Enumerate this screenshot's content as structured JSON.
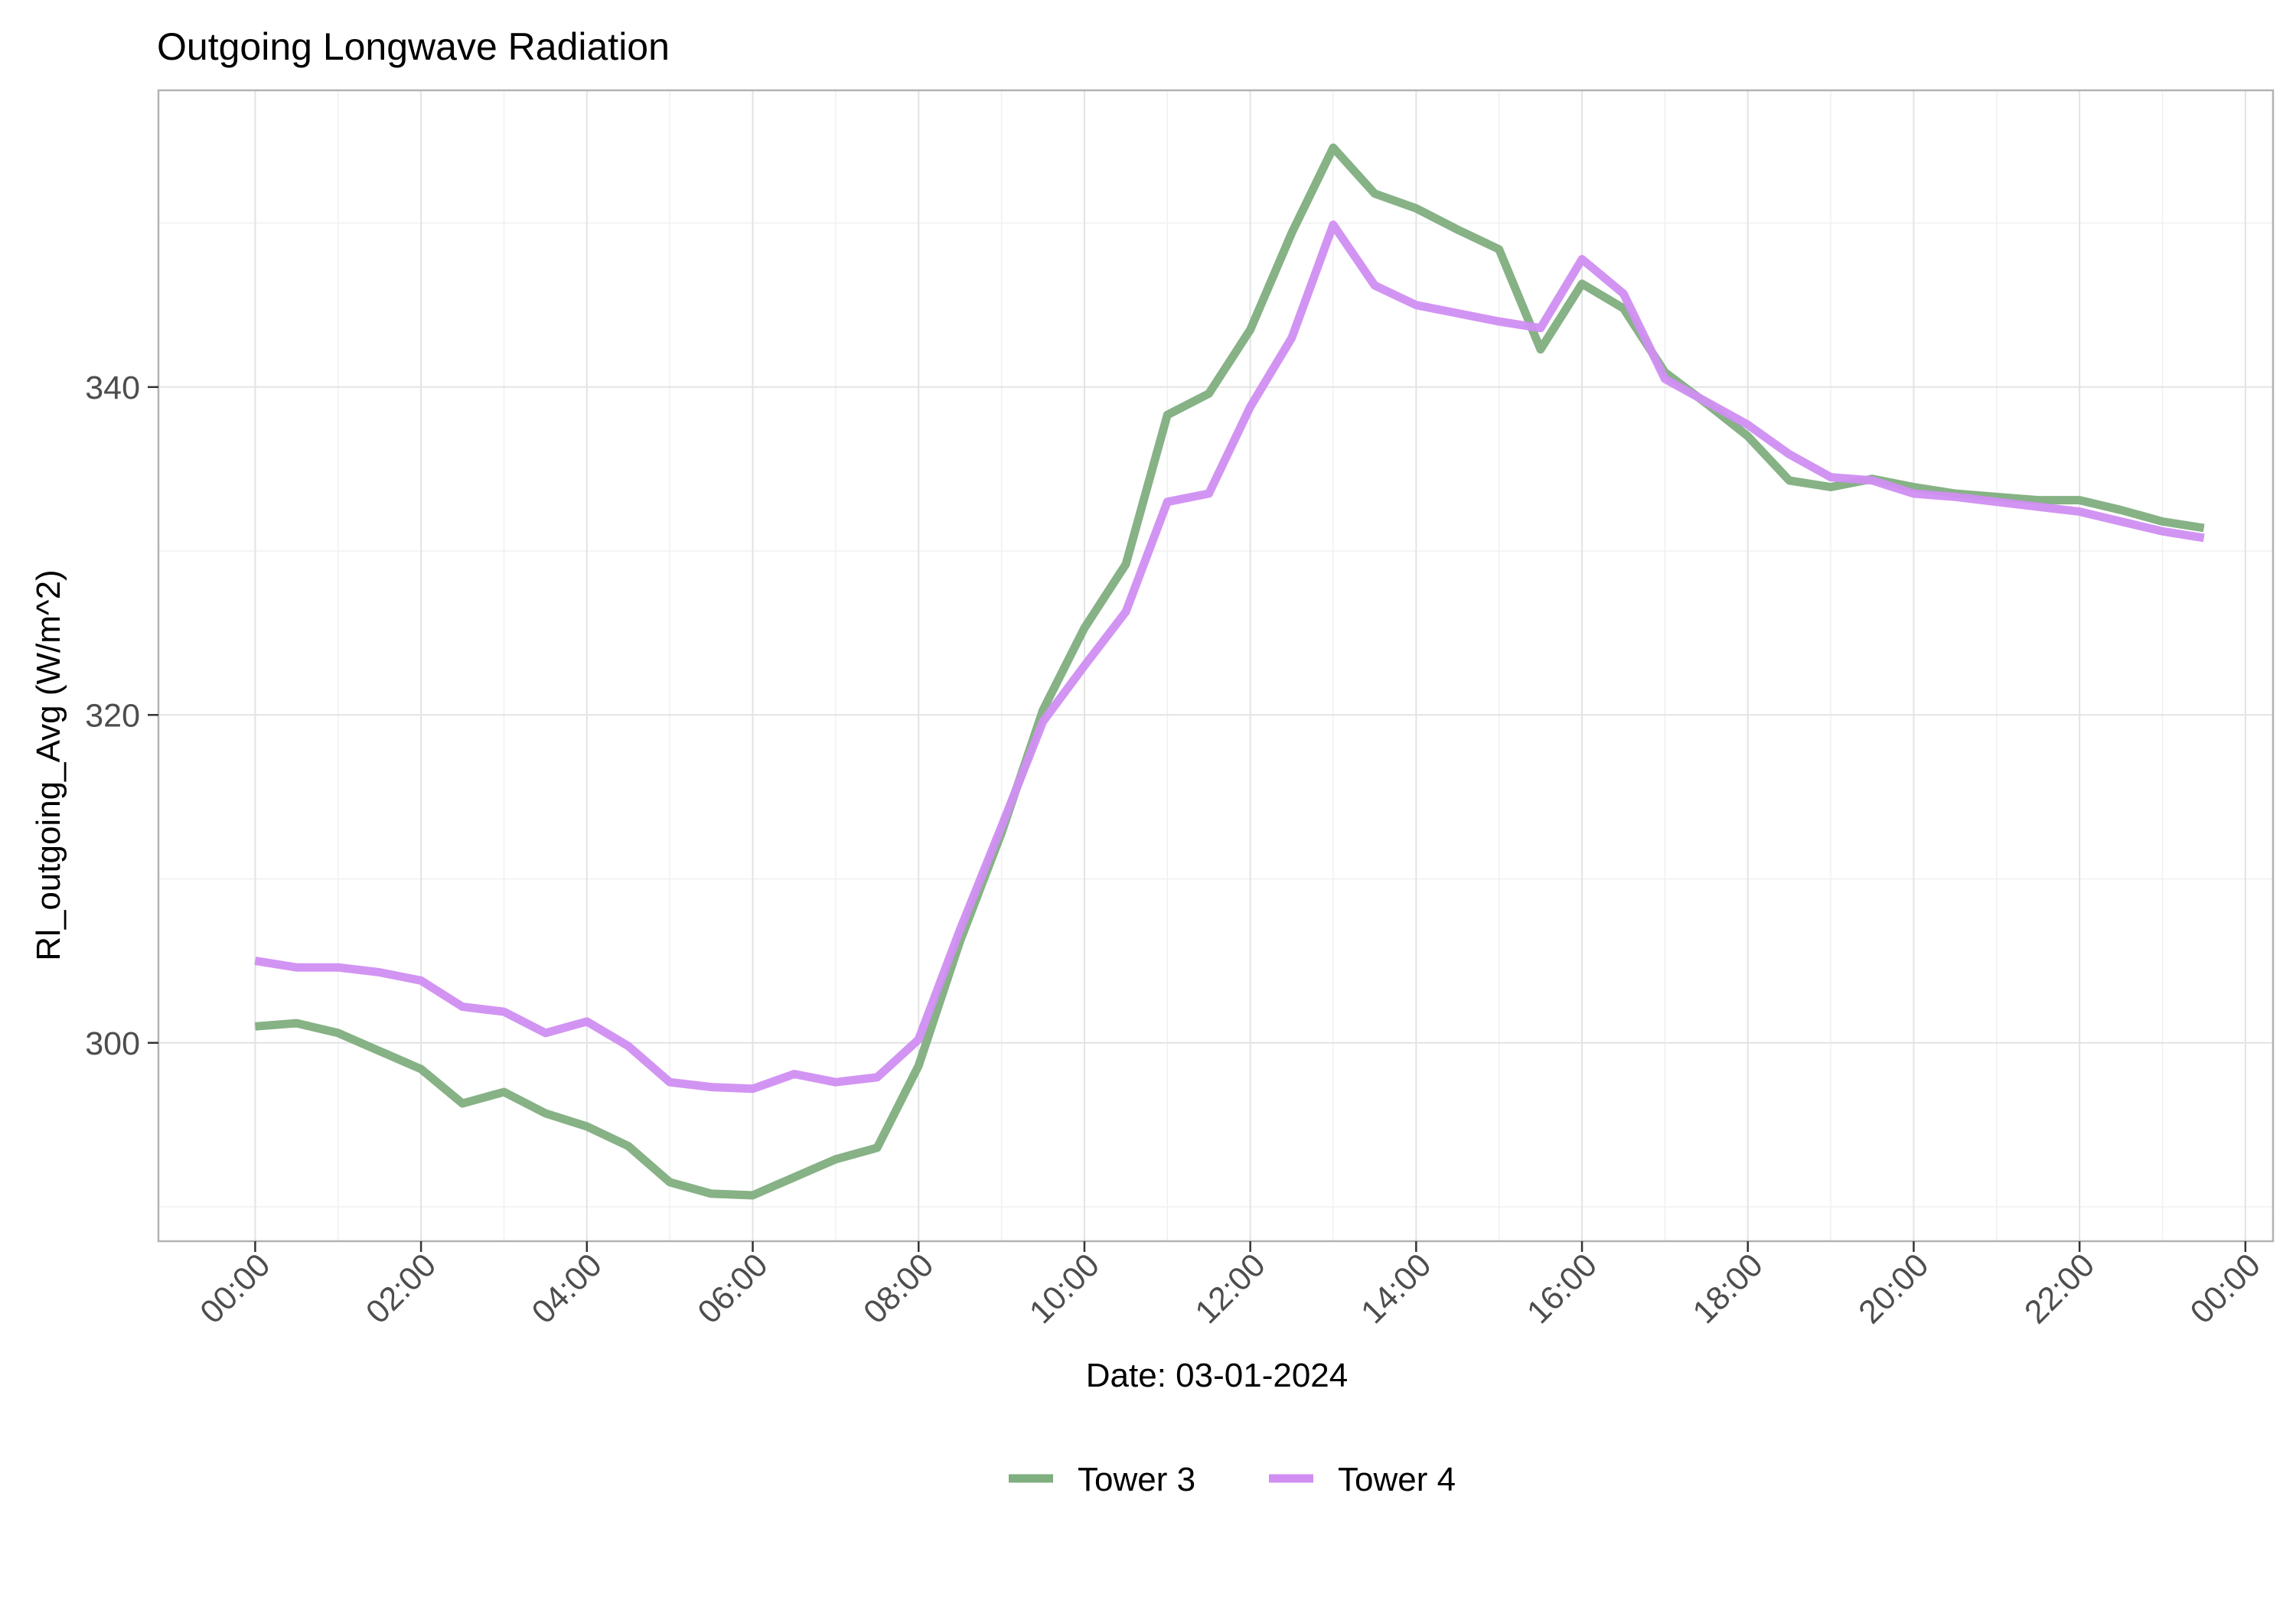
{
  "chart_data": {
    "type": "line",
    "title": "Outgoing Longwave Radiation",
    "xlabel": "Date: 03-01-2024",
    "ylabel": "Rl_outgoing_Avg (W/m^2)",
    "x_unit": "hours of day",
    "xlim": [
      -1.1667,
      24.3333
    ],
    "ylim": [
      287.9,
      358.1
    ],
    "x_ticks": [
      0,
      2,
      4,
      6,
      8,
      10,
      12,
      14,
      16,
      18,
      20,
      22,
      24
    ],
    "x_tick_labels": [
      "00:00",
      "02:00",
      "04:00",
      "06:00",
      "08:00",
      "10:00",
      "12:00",
      "14:00",
      "16:00",
      "18:00",
      "20:00",
      "22:00",
      "00:00"
    ],
    "y_ticks": [
      300,
      320,
      340
    ],
    "y_tick_labels": [
      "300",
      "320",
      "340"
    ],
    "grid": true,
    "legend_position": "bottom",
    "x": [
      0,
      0.5,
      1,
      1.5,
      2,
      2.5,
      3,
      3.5,
      4,
      4.5,
      5,
      5.5,
      6,
      6.5,
      7,
      7.5,
      8,
      8.5,
      9,
      9.5,
      10,
      10.5,
      11,
      11.5,
      12,
      12.5,
      13,
      13.5,
      14,
      14.5,
      15,
      15.5,
      16,
      16.5,
      17,
      17.5,
      18,
      18.5,
      19,
      19.5,
      20,
      20.5,
      21,
      21.5,
      22,
      22.5,
      23,
      23.5
    ],
    "series": [
      {
        "name": "Tower 3",
        "color": "#7fae7f",
        "values": [
          301.0,
          301.2,
          300.6,
          299.5,
          298.4,
          296.3,
          297.0,
          295.7,
          294.9,
          293.7,
          291.5,
          290.8,
          290.7,
          291.8,
          292.9,
          293.6,
          298.6,
          306.2,
          312.8,
          320.3,
          325.3,
          329.2,
          338.3,
          339.6,
          343.5,
          349.4,
          354.6,
          351.8,
          350.9,
          349.6,
          348.4,
          342.3,
          346.3,
          344.8,
          340.9,
          339.0,
          337.0,
          334.3,
          333.9,
          334.4,
          333.9,
          333.5,
          333.3,
          333.1,
          333.1,
          332.5,
          331.8,
          331.4
        ]
      },
      {
        "name": "Tower 4",
        "color": "#d08ef2",
        "values": [
          305.0,
          304.6,
          304.6,
          304.3,
          303.8,
          302.2,
          301.9,
          300.6,
          301.3,
          299.8,
          297.6,
          297.3,
          297.2,
          298.1,
          297.6,
          297.9,
          300.2,
          306.9,
          313.2,
          319.6,
          323.0,
          326.3,
          333.0,
          333.5,
          338.8,
          343.0,
          349.9,
          346.2,
          345.0,
          344.5,
          344.0,
          343.6,
          347.8,
          345.7,
          340.5,
          339.1,
          337.7,
          335.9,
          334.5,
          334.3,
          333.5,
          333.3,
          333.0,
          332.7,
          332.4,
          331.8,
          331.2,
          330.8
        ]
      }
    ]
  }
}
